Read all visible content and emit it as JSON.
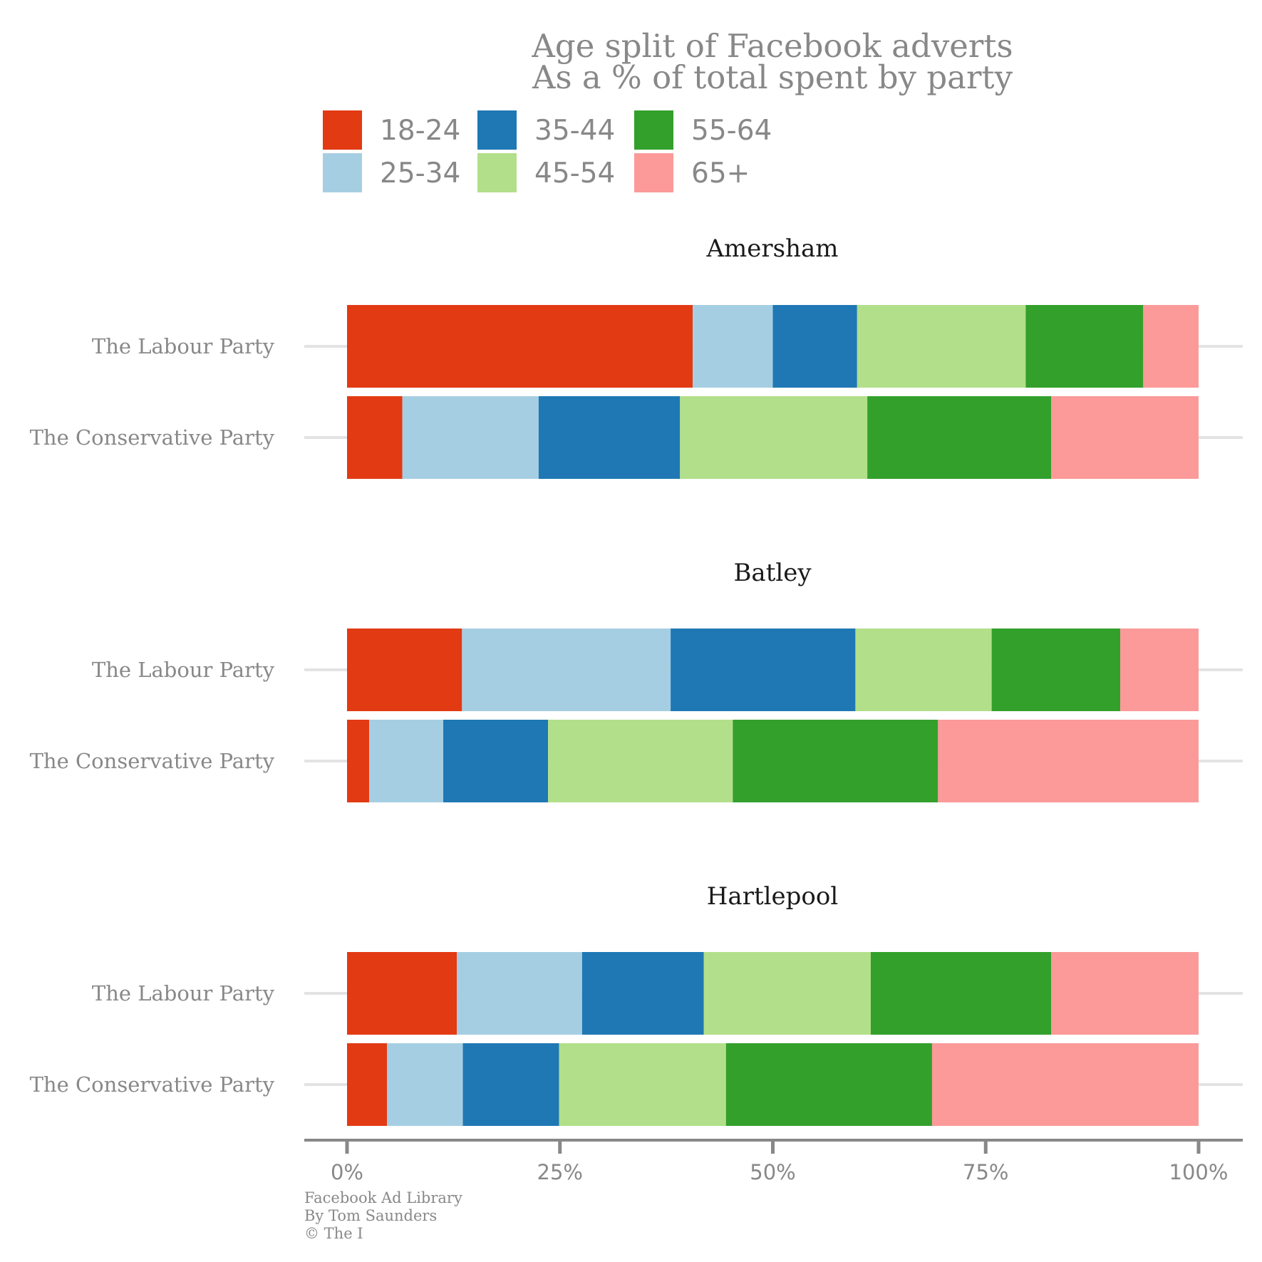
{
  "chart_data": {
    "type": "bar",
    "orientation": "horizontal",
    "stacked": true,
    "title": "Age split of Facebook adverts",
    "subtitle": "As a % of total spent by party",
    "legend_position": "top",
    "xlim": [
      0,
      100
    ],
    "x_ticks": [
      "0%",
      "25%",
      "50%",
      "75%",
      "100%"
    ],
    "x_tick_values": [
      0,
      25,
      50,
      75,
      100
    ],
    "categories": [
      "18-24",
      "25-34",
      "35-44",
      "45-54",
      "55-64",
      "65+"
    ],
    "colors": {
      "18-24": "#e23a13",
      "25-34": "#a6cee3",
      "35-44": "#1f78b4",
      "45-54": "#b2df8a",
      "55-64": "#33a02c",
      "65+": "#fb9a99"
    },
    "panels": [
      {
        "name": "Amersham",
        "rows": [
          {
            "party": "The Labour Party",
            "values": [
              40.6,
              9.4,
              9.9,
              19.8,
              13.8,
              6.5
            ]
          },
          {
            "party": "The Conservative Party",
            "values": [
              6.5,
              16.0,
              16.6,
              22.0,
              21.6,
              17.3
            ]
          }
        ]
      },
      {
        "name": "Batley",
        "rows": [
          {
            "party": "The Labour Party",
            "values": [
              13.5,
              24.5,
              21.7,
              16.0,
              15.1,
              9.2
            ]
          },
          {
            "party": "The Conservative Party",
            "values": [
              2.6,
              8.7,
              12.3,
              21.7,
              24.1,
              30.6
            ]
          }
        ]
      },
      {
        "name": "Hartlepool",
        "rows": [
          {
            "party": "The Labour Party",
            "values": [
              12.9,
              14.7,
              14.3,
              19.6,
              21.2,
              17.3
            ]
          },
          {
            "party": "The Conservative Party",
            "values": [
              4.7,
              8.9,
              11.3,
              19.6,
              24.2,
              31.3
            ]
          }
        ]
      }
    ],
    "caption": [
      "Facebook Ad Library",
      "By Tom Saunders",
      "© The I"
    ]
  }
}
